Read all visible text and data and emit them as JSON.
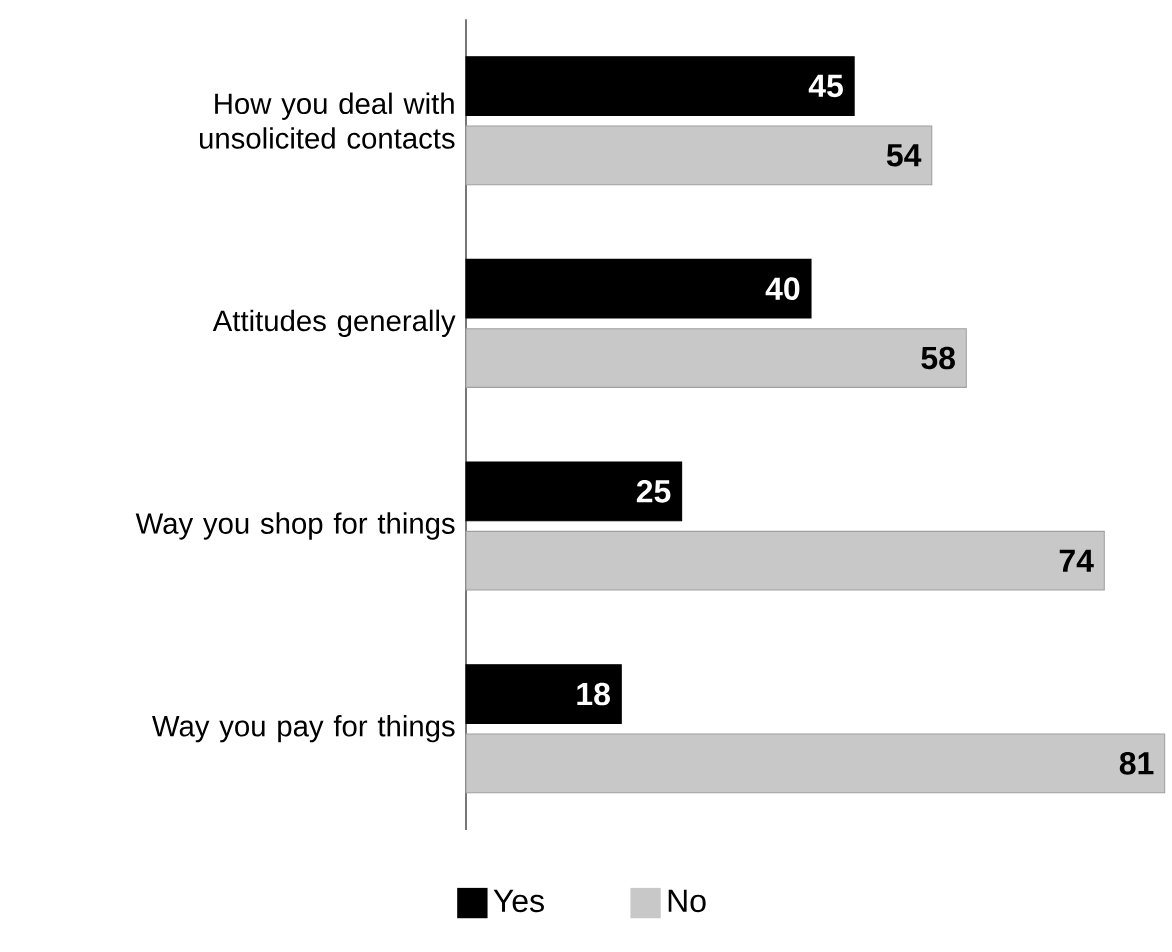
{
  "chart_data": {
    "type": "bar",
    "orientation": "horizontal",
    "categories": [
      "How you deal with unsolicited contacts",
      "Attitudes generally",
      "Way you shop for things",
      "Way you pay for things"
    ],
    "series": [
      {
        "name": "Yes",
        "color": "#000000",
        "values": [
          45,
          40,
          25,
          18
        ]
      },
      {
        "name": "No",
        "color": "#c8c8c8",
        "values": [
          54,
          58,
          74,
          81
        ]
      }
    ],
    "data_labels": true,
    "legend": "bottom"
  }
}
